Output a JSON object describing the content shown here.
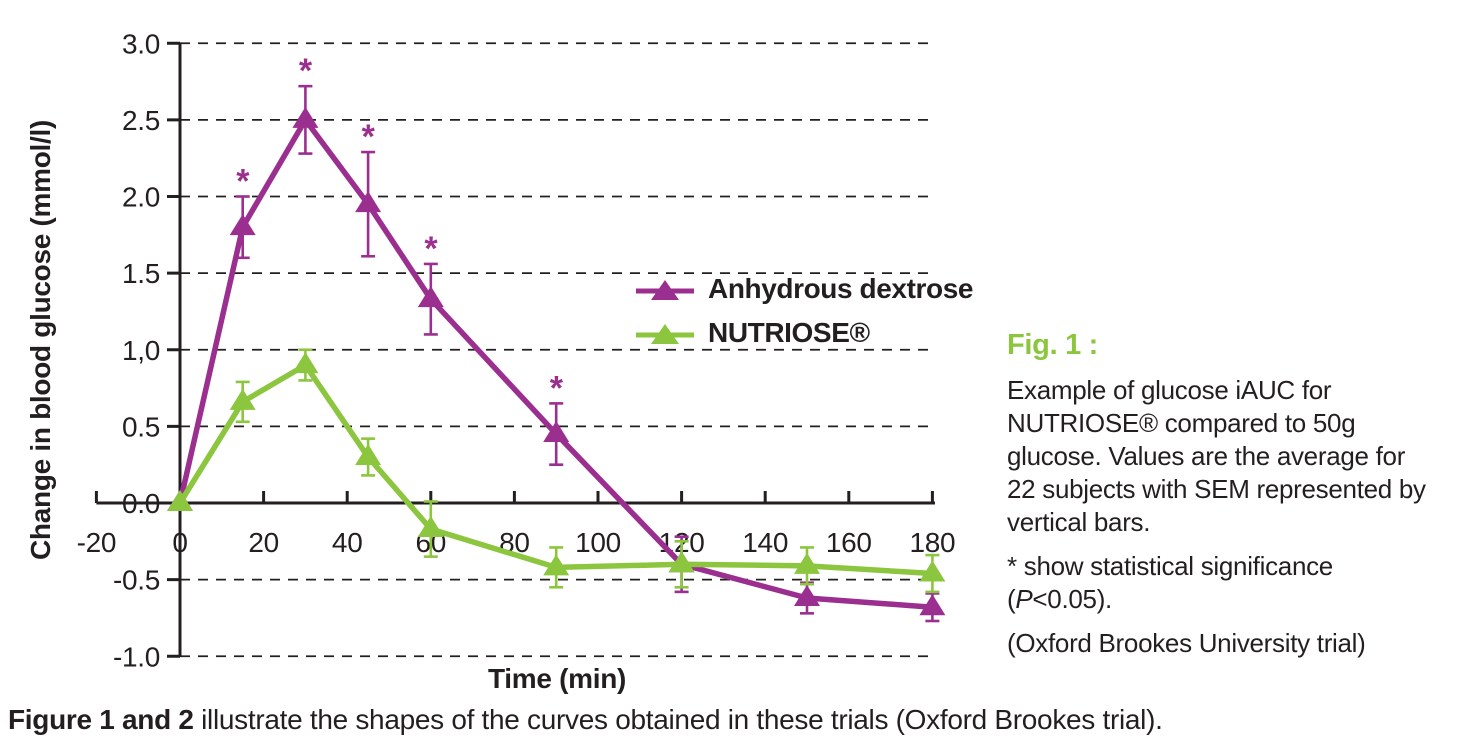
{
  "figure": {
    "side_caption": {
      "heading": "Fig. 1 :",
      "heading_color": "#8CC63F",
      "body": "Example of glucose iAUC for NUTRIOSE® compared to 50g glucose. Values are the average for 22 subjects with SEM represented by vertical bars.",
      "sig_before": "* show statistical significance (",
      "sig_italic": "P",
      "sig_after": "<0.05).",
      "trial_note": "(Oxford Brookes University trial)"
    },
    "bottom_caption": {
      "bold": "Figure 1 and 2",
      "rest": " illustrate the shapes of the curves obtained in these trials (Oxford Brookes trial)."
    }
  },
  "legend": {
    "items": [
      {
        "label": "Anhydrous dextrose",
        "color": "#9B2F90",
        "marker": "triangle-up"
      },
      {
        "label": "NUTRIOSE®",
        "color": "#8CC63F",
        "marker": "triangle-up"
      }
    ]
  },
  "chart_data": {
    "type": "line",
    "title": "",
    "xlabel": "Time (min)",
    "ylabel": "Change in blood glucose (mmol/l)",
    "xlim": [
      -20,
      180
    ],
    "ylim": [
      -1.0,
      3.0
    ],
    "grid": "dashed horizontal at every 0.5 except 0",
    "legend_position": "inside upper right of plot",
    "ink_color": "#231F20",
    "x_ticks": [
      {
        "label": "-20",
        "t": -20
      },
      {
        "label": "0",
        "t": 0
      },
      {
        "label": "20",
        "t": 20
      },
      {
        "label": "40",
        "t": 40
      },
      {
        "label": "60",
        "t": 60
      },
      {
        "label": "80",
        "t": 80
      },
      {
        "label": "100",
        "t": 100
      },
      {
        "label": "120",
        "t": 120
      },
      {
        "label": "140",
        "t": 140
      },
      {
        "label": "160",
        "t": 160
      },
      {
        "label": "180",
        "t": 180
      }
    ],
    "y_ticks": [
      {
        "label": "3.0",
        "v": 3.0
      },
      {
        "label": "2.5",
        "v": 2.5
      },
      {
        "label": "2.0",
        "v": 2.0
      },
      {
        "label": "1.5",
        "v": 1.5
      },
      {
        "label": "1,0",
        "v": 1.0
      },
      {
        "label": "0.5",
        "v": 0.5
      },
      {
        "label": "0.0",
        "v": 0.0
      },
      {
        "label": "-0.5",
        "v": -0.5
      },
      {
        "label": "-1.0",
        "v": -1.0
      }
    ],
    "series": [
      {
        "name": "Anhydrous dextrose",
        "color": "#9B2F90",
        "x": [
          0,
          15,
          30,
          45,
          60,
          90,
          120,
          150,
          180
        ],
        "y": [
          0.0,
          1.8,
          2.5,
          1.95,
          1.33,
          0.45,
          -0.4,
          -0.62,
          -0.68
        ],
        "sem": [
          0,
          0.2,
          0.22,
          0.34,
          0.23,
          0.2,
          0.18,
          0.1,
          0.09
        ],
        "significant": [
          false,
          true,
          true,
          true,
          true,
          true,
          false,
          false,
          false
        ]
      },
      {
        "name": "NUTRIOSE®",
        "color": "#8CC63F",
        "x": [
          0,
          15,
          30,
          45,
          60,
          90,
          120,
          150,
          180
        ],
        "y": [
          0.0,
          0.66,
          0.9,
          0.3,
          -0.17,
          -0.42,
          -0.4,
          -0.41,
          -0.46
        ],
        "sem": [
          0,
          0.13,
          0.1,
          0.12,
          0.18,
          0.13,
          0.15,
          0.12,
          0.12
        ],
        "significant": [
          false,
          false,
          false,
          false,
          false,
          false,
          false,
          false,
          false
        ]
      }
    ]
  }
}
